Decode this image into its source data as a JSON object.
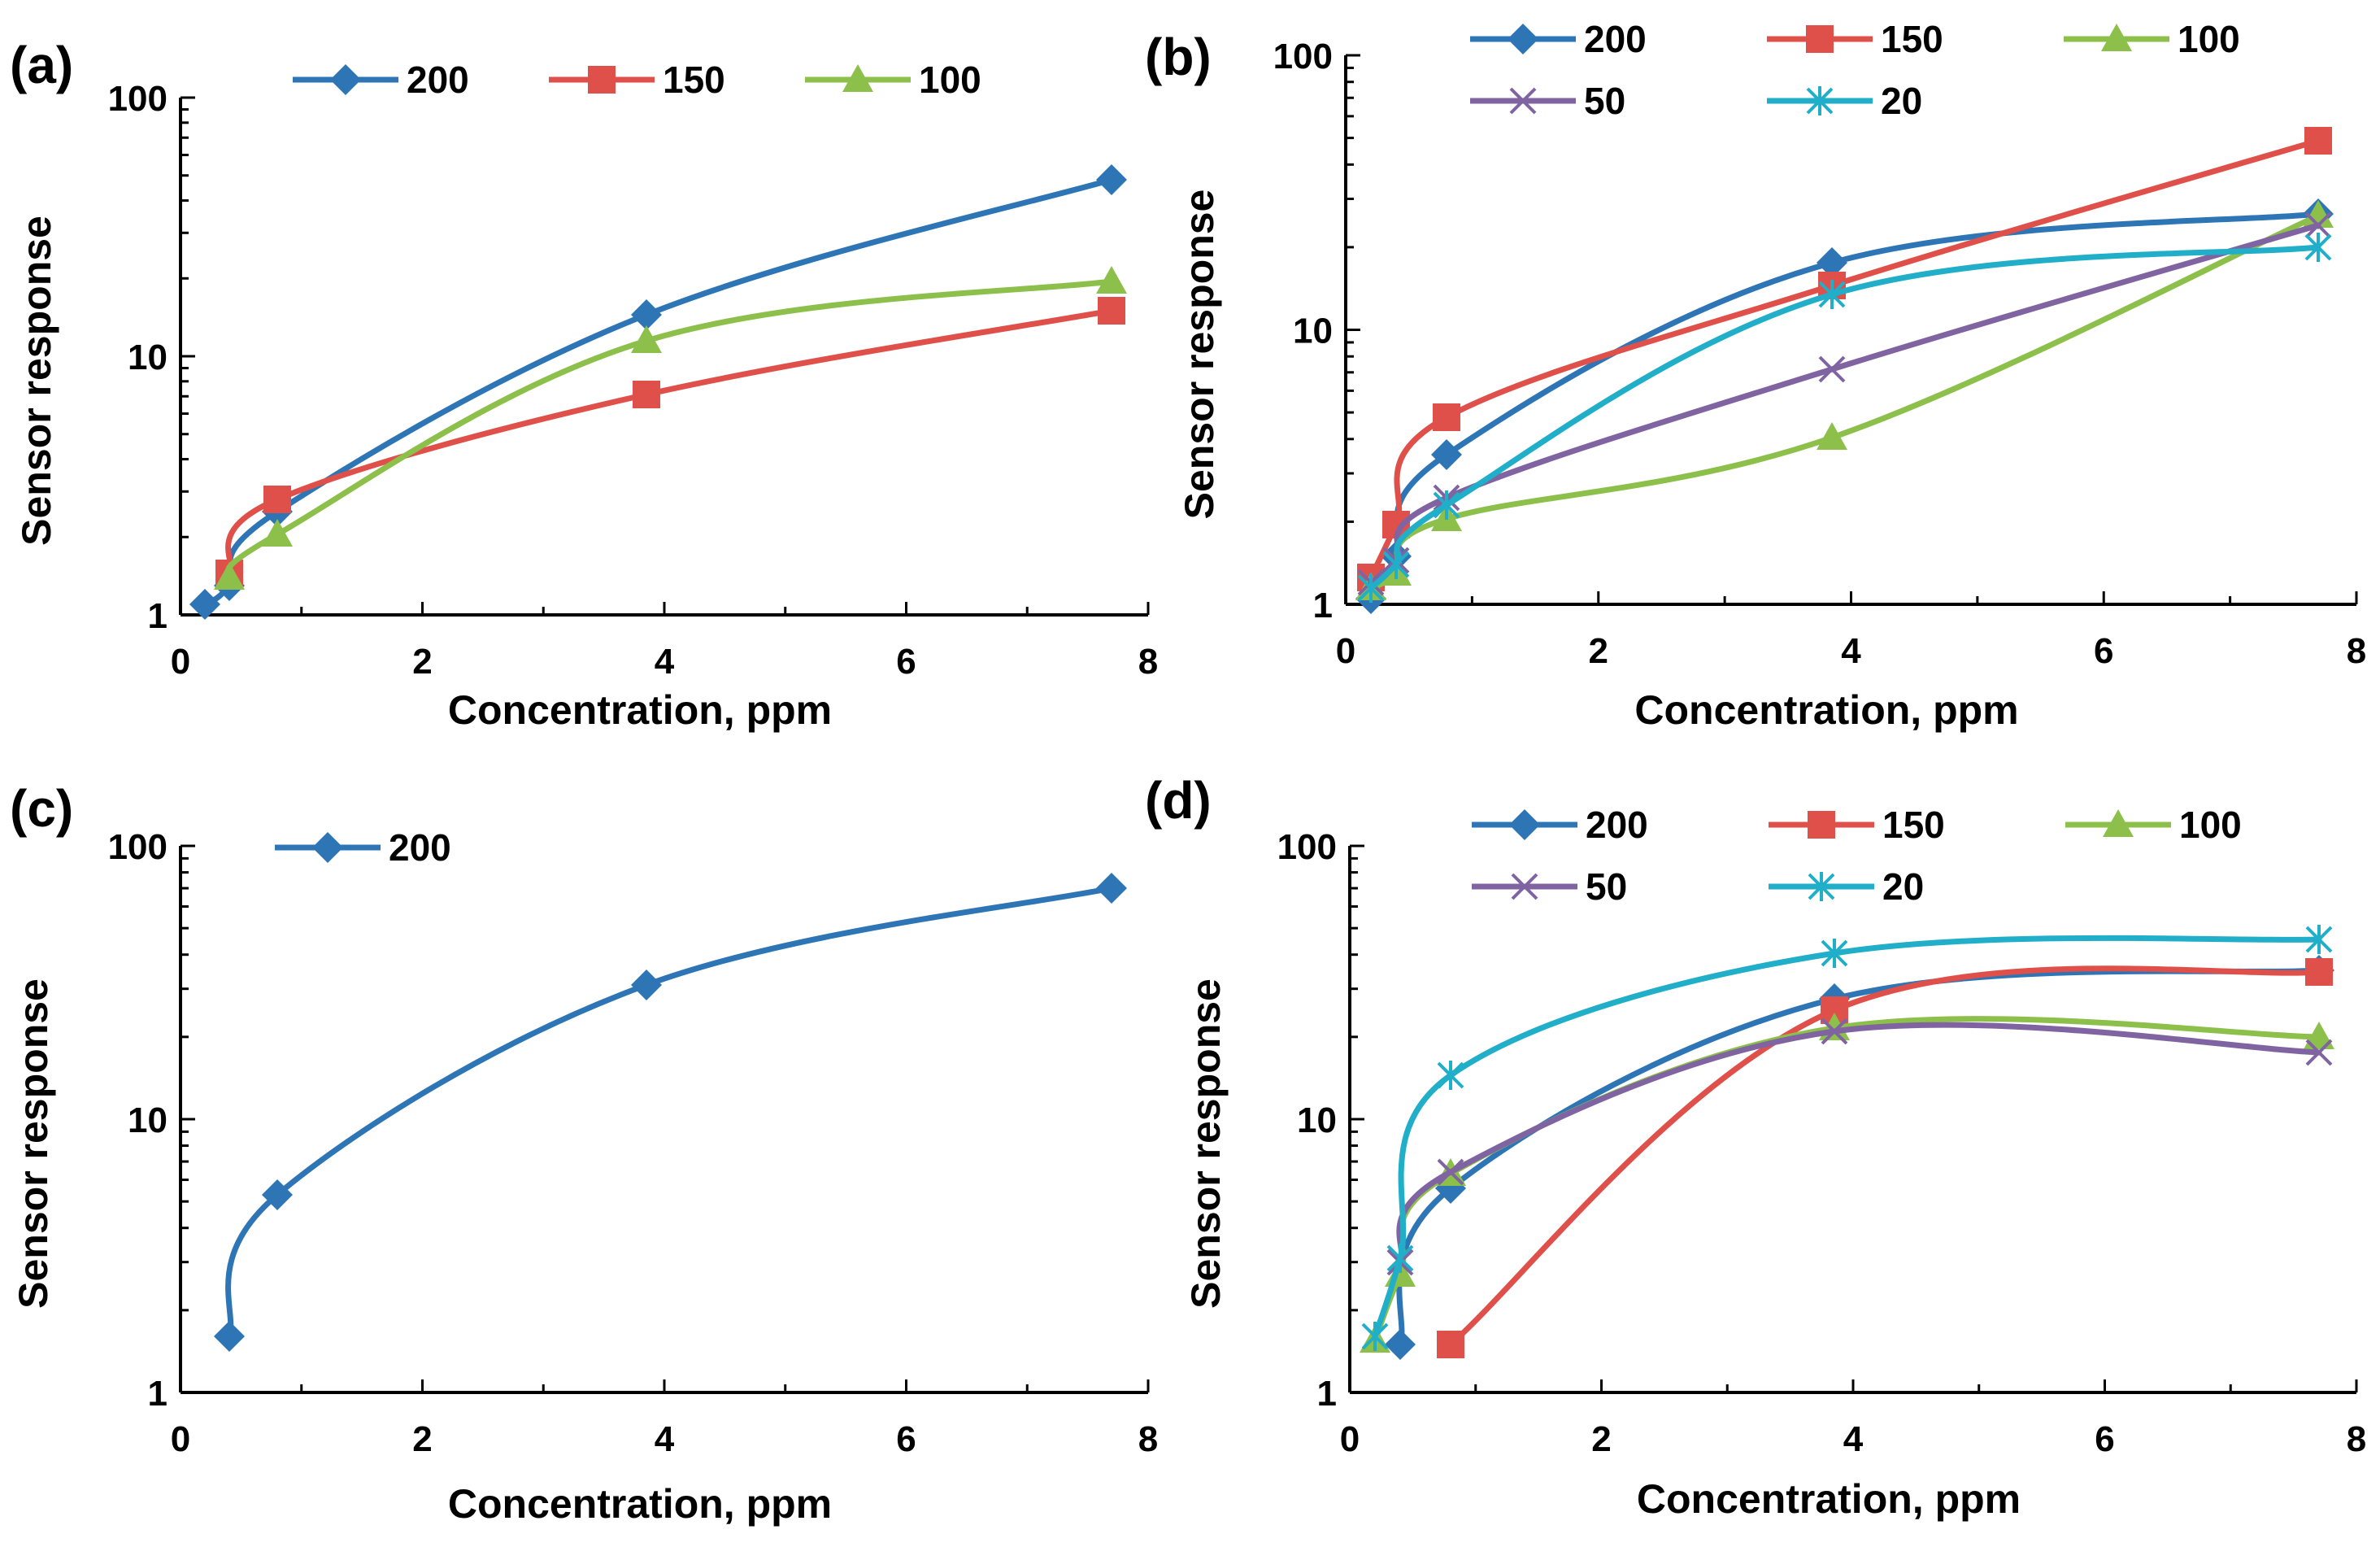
{
  "series_styles": {
    "200": {
      "color": "#2E75B6",
      "marker": "diamond"
    },
    "150": {
      "color": "#E0504A",
      "marker": "square"
    },
    "100": {
      "color": "#8CC04B",
      "marker": "triangle"
    },
    "50": {
      "color": "#8064A2",
      "marker": "x"
    },
    "20": {
      "color": "#20AEC8",
      "marker": "star"
    }
  },
  "chart_data": [
    {
      "type": "line",
      "panel": "(a)",
      "xlabel": "Concentration, ppm",
      "ylabel": "Sensor response",
      "xlim": [
        0,
        8
      ],
      "ylim": [
        1,
        100
      ],
      "yscale": "log",
      "x_ticks": [
        "0",
        "2",
        "4",
        "6",
        "8"
      ],
      "y_ticks": [
        "1",
        "10",
        "100"
      ],
      "legend_rows": [
        [
          "200",
          "150",
          "100"
        ]
      ],
      "series": [
        {
          "name": "200",
          "x": [
            0.2,
            0.4,
            0.8,
            3.85,
            7.7
          ],
          "values": [
            1.1,
            1.3,
            2.5,
            14.5,
            48
          ]
        },
        {
          "name": "150",
          "x": [
            0.4,
            0.8,
            3.85,
            7.7
          ],
          "values": [
            1.45,
            2.8,
            7.1,
            15
          ]
        },
        {
          "name": "100",
          "x": [
            0.4,
            0.8,
            3.85,
            7.7
          ],
          "values": [
            1.4,
            2.05,
            11.5,
            19.5
          ]
        }
      ]
    },
    {
      "type": "line",
      "panel": "(b)",
      "xlabel": "Concentration, ppm",
      "ylabel": "Sensor response",
      "xlim": [
        0,
        8
      ],
      "ylim": [
        1,
        100
      ],
      "yscale": "log",
      "x_ticks": [
        "0",
        "2",
        "4",
        "6",
        "8"
      ],
      "y_ticks": [
        "1",
        "10",
        "100"
      ],
      "legend_rows": [
        [
          "200",
          "150",
          "100"
        ],
        [
          "50",
          "20"
        ]
      ],
      "series": [
        {
          "name": "200",
          "x": [
            0.2,
            0.4,
            0.8,
            3.85,
            7.7
          ],
          "values": [
            1.05,
            1.5,
            3.5,
            17.5,
            26.5
          ]
        },
        {
          "name": "150",
          "x": [
            0.2,
            0.4,
            0.8,
            3.85,
            7.7
          ],
          "values": [
            1.25,
            1.95,
            4.8,
            14.5,
            49
          ]
        },
        {
          "name": "100",
          "x": [
            0.2,
            0.4,
            0.8,
            3.85,
            7.7
          ],
          "values": [
            1.15,
            1.3,
            2.05,
            4.05,
            26
          ]
        },
        {
          "name": "50",
          "x": [
            0.2,
            0.4,
            0.8,
            3.85,
            7.7
          ],
          "values": [
            1.2,
            1.45,
            2.45,
            7.2,
            24
          ]
        },
        {
          "name": "20",
          "x": [
            0.2,
            0.4,
            0.8,
            3.85,
            7.7
          ],
          "values": [
            1.15,
            1.4,
            2.3,
            13.5,
            20
          ]
        }
      ]
    },
    {
      "type": "line",
      "panel": "(c)",
      "xlabel": "Concentration, ppm",
      "ylabel": "Sensor response",
      "xlim": [
        0,
        8
      ],
      "ylim": [
        1,
        100
      ],
      "yscale": "log",
      "x_ticks": [
        "0",
        "2",
        "4",
        "6",
        "8"
      ],
      "y_ticks": [
        "1",
        "10",
        "100"
      ],
      "legend_rows": [
        [
          "200"
        ]
      ],
      "series": [
        {
          "name": "200",
          "x": [
            0.4,
            0.8,
            3.85,
            7.7
          ],
          "values": [
            1.6,
            5.3,
            31,
            70
          ]
        }
      ]
    },
    {
      "type": "line",
      "panel": "(d)",
      "xlabel": "Concentration, ppm",
      "ylabel": "Sensor response",
      "xlim": [
        0,
        8
      ],
      "ylim": [
        1,
        100
      ],
      "yscale": "log",
      "x_ticks": [
        "0",
        "2",
        "4",
        "6",
        "8"
      ],
      "y_ticks": [
        "1",
        "10",
        "100"
      ],
      "legend_rows": [
        [
          "200",
          "150",
          "100"
        ],
        [
          "50",
          "20"
        ]
      ],
      "series": [
        {
          "name": "200",
          "x": [
            0.4,
            0.8,
            3.85,
            7.7
          ],
          "values": [
            1.5,
            5.6,
            27.5,
            35
          ]
        },
        {
          "name": "150",
          "x": [
            0.8,
            3.85,
            7.7
          ],
          "values": [
            1.5,
            25,
            34.5
          ]
        },
        {
          "name": "100",
          "x": [
            0.2,
            0.4,
            0.8,
            3.85,
            7.7
          ],
          "values": [
            1.55,
            2.7,
            6.3,
            21.5,
            20
          ]
        },
        {
          "name": "50",
          "x": [
            0.4,
            0.8,
            3.85,
            7.7
          ],
          "values": [
            3.0,
            6.4,
            21,
            17.5
          ]
        },
        {
          "name": "20",
          "x": [
            0.2,
            0.4,
            0.8,
            3.85,
            7.7
          ],
          "values": [
            1.6,
            3.1,
            14.5,
            40.5,
            45.5
          ]
        }
      ]
    }
  ]
}
